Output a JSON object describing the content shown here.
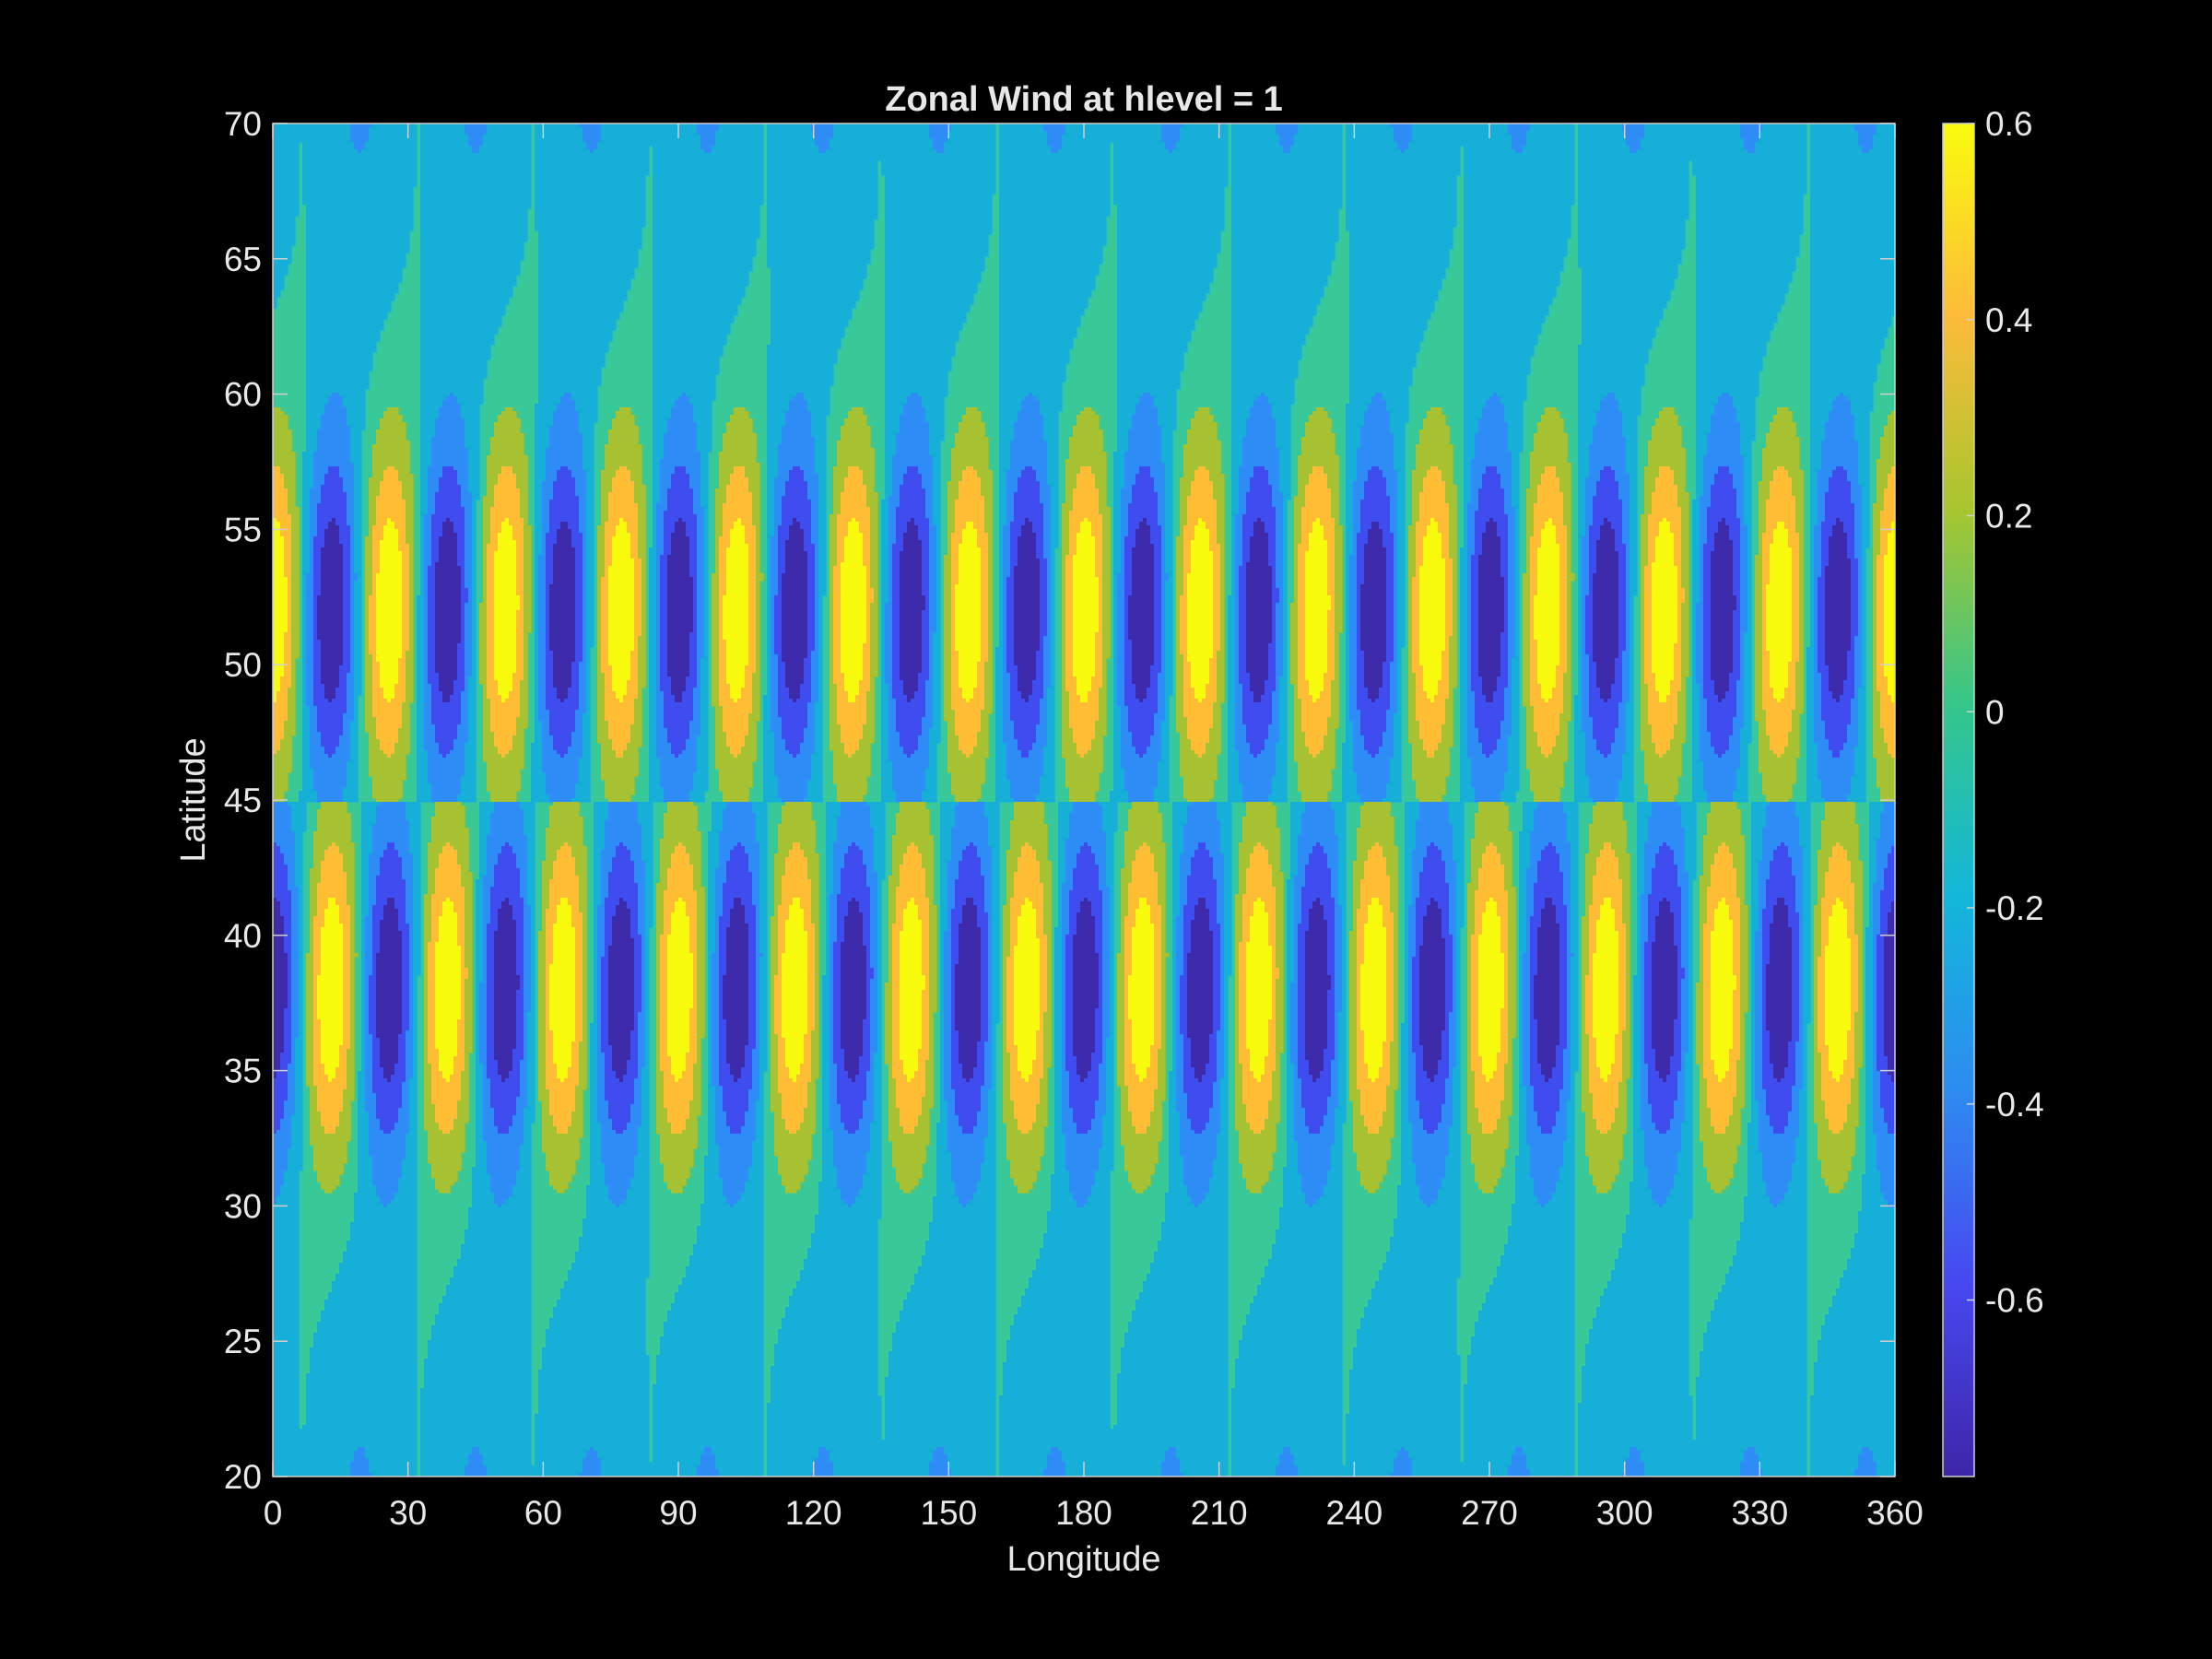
{
  "chart_data": {
    "type": "contourf",
    "title": "Zonal Wind at hlevel = 1",
    "xlabel": "Longitude",
    "ylabel": "Latitude",
    "xlim": [
      0,
      360
    ],
    "ylim": [
      20,
      70
    ],
    "x_ticks": [
      "0",
      "30",
      "60",
      "90",
      "120",
      "150",
      "180",
      "210",
      "240",
      "270",
      "300",
      "330",
      "360"
    ],
    "y_ticks": [
      "20",
      "25",
      "30",
      "35",
      "40",
      "45",
      "50",
      "55",
      "60",
      "65",
      "70"
    ],
    "field": {
      "zonal_wavenumber": 14,
      "amplitude": 0.78,
      "north_lobe_center_lat": 52,
      "south_lobe_center_lat": 38,
      "discontinuity_lat": 45,
      "north_lobe_positive_lon": 2
    },
    "contour_levels": [
      -0.8,
      -0.6,
      -0.4,
      -0.2,
      0,
      0.2,
      0.4,
      0.6,
      0.8
    ],
    "colorbar": {
      "clim": [
        -0.78,
        0.6
      ],
      "ticks": [
        "0.6",
        "0.4",
        "0.2",
        "0",
        "-0.2",
        "-0.4",
        "-0.6"
      ],
      "tick_values": [
        0.6,
        0.4,
        0.2,
        0,
        -0.2,
        -0.4,
        -0.6
      ],
      "colors": [
        "#3d2bab",
        "#3f4cf0",
        "#2d8cf5",
        "#15afd8",
        "#39c898",
        "#a6c232",
        "#ffbd35",
        "#f8fa0e"
      ],
      "gradient": [
        "#3e26a8",
        "#4748f0",
        "#2d8cf0",
        "#13b7da",
        "#35c68a",
        "#a7c62f",
        "#fdbb3a",
        "#f9fb0e"
      ]
    }
  }
}
